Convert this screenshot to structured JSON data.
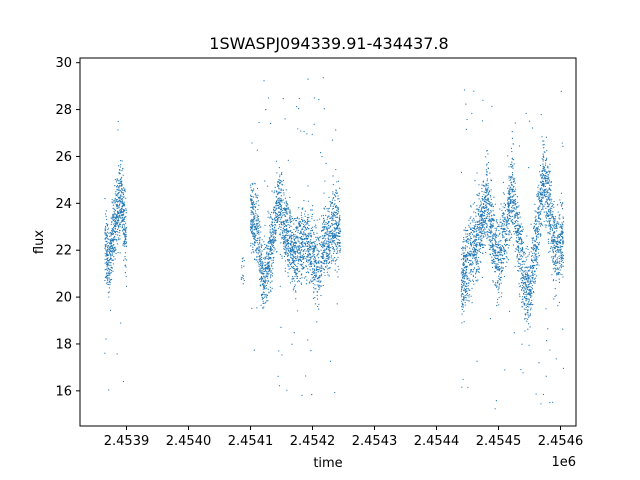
{
  "chart_data": {
    "type": "scatter",
    "title": "1SWASPJ094339.91-434437.8",
    "xlabel": "time",
    "ylabel": "flux",
    "x_offset_label": "1e6",
    "xlim": [
      2453825,
      2454625
    ],
    "ylim": [
      14.5,
      30.2
    ],
    "x_ticks": [
      {
        "value": 2453900,
        "label": "2.4539"
      },
      {
        "value": 2454000,
        "label": "2.4540"
      },
      {
        "value": 2454100,
        "label": "2.4541"
      },
      {
        "value": 2454200,
        "label": "2.4542"
      },
      {
        "value": 2454300,
        "label": "2.4543"
      },
      {
        "value": 2454400,
        "label": "2.4544"
      },
      {
        "value": 2454500,
        "label": "2.4545"
      },
      {
        "value": 2454600,
        "label": "2.4546"
      }
    ],
    "y_ticks": [
      {
        "value": 16,
        "label": "16"
      },
      {
        "value": 18,
        "label": "18"
      },
      {
        "value": 20,
        "label": "20"
      },
      {
        "value": 22,
        "label": "22"
      },
      {
        "value": 24,
        "label": "24"
      },
      {
        "value": 26,
        "label": "26"
      },
      {
        "value": 28,
        "label": "28"
      },
      {
        "value": 30,
        "label": "30"
      }
    ],
    "grid": false,
    "marker_color": "#1f77b4",
    "segments": [
      {
        "x_start": 2453865,
        "x_end": 2453900,
        "trend": [
          [
            2453865,
            22.5
          ],
          [
            2453872,
            21.2
          ],
          [
            2453878,
            22.6
          ],
          [
            2453885,
            23.8
          ],
          [
            2453892,
            24.3
          ],
          [
            2453897,
            23.2
          ],
          [
            2453900,
            22.0
          ]
        ],
        "spread": 2.2,
        "outlier_range": [
          15.2,
          28.7
        ],
        "count": 650
      },
      {
        "x_start": 2454085,
        "x_end": 2454090,
        "trend": [
          [
            2454085,
            21.0
          ],
          [
            2454090,
            21.2
          ]
        ],
        "spread": 1.0,
        "outlier_range": [
          20.5,
          21.8
        ],
        "count": 15
      },
      {
        "x_start": 2454100,
        "x_end": 2454245,
        "trend": [
          [
            2454100,
            23.6
          ],
          [
            2454112,
            22.8
          ],
          [
            2454120,
            20.6
          ],
          [
            2454130,
            21.6
          ],
          [
            2454145,
            24.1
          ],
          [
            2454155,
            23.0
          ],
          [
            2454170,
            21.8
          ],
          [
            2454185,
            22.5
          ],
          [
            2454200,
            22.0
          ],
          [
            2454210,
            21.2
          ],
          [
            2454220,
            22.4
          ],
          [
            2454232,
            23.0
          ],
          [
            2454245,
            22.8
          ]
        ],
        "spread": 2.2,
        "outlier_range": [
          15.6,
          29.4
        ],
        "count": 2200
      },
      {
        "x_start": 2454440,
        "x_end": 2454605,
        "trend": [
          [
            2454440,
            20.6
          ],
          [
            2454455,
            21.8
          ],
          [
            2454470,
            22.8
          ],
          [
            2454482,
            24.2
          ],
          [
            2454492,
            22.4
          ],
          [
            2454500,
            21.6
          ],
          [
            2454512,
            23.0
          ],
          [
            2454522,
            24.6
          ],
          [
            2454532,
            22.6
          ],
          [
            2454542,
            20.6
          ],
          [
            2454550,
            20.2
          ],
          [
            2454562,
            22.6
          ],
          [
            2454572,
            25.2
          ],
          [
            2454582,
            24.0
          ],
          [
            2454592,
            22.0
          ],
          [
            2454605,
            22.6
          ]
        ],
        "spread": 2.4,
        "outlier_range": [
          15.2,
          29.0
        ],
        "count": 2600
      }
    ]
  }
}
